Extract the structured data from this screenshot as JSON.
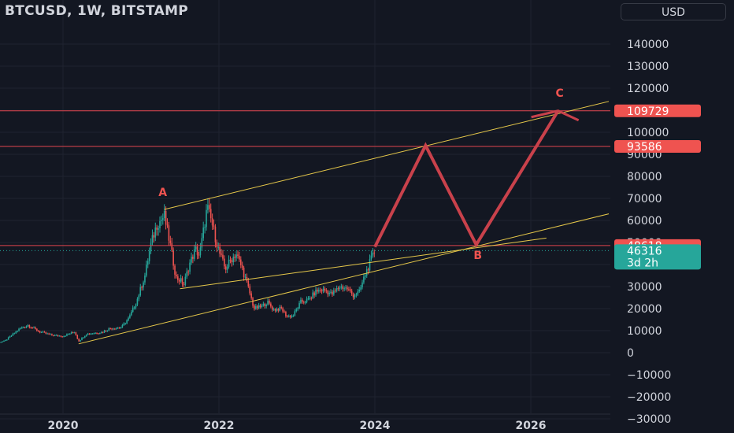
{
  "header": {
    "title": "BTCUSD, 1W, BITSTAMP",
    "currency_label": "USD"
  },
  "colors": {
    "background": "#131722",
    "axis_text": "#d1d4dc",
    "grid": "#1f2330",
    "up": "#26a69a",
    "down": "#ef5350",
    "channel_line": "#e6c84a",
    "projection": "#c9414b",
    "level_line": "#e0444d",
    "price_badge": "#26a69a"
  },
  "chart_data": {
    "type": "candlestick",
    "symbol": "BTCUSD",
    "interval": "1W",
    "exchange": "BITSTAMP",
    "x_tick_labels": [
      "2020",
      "2022",
      "2024",
      "2026"
    ],
    "y_tick_values": [
      140000,
      130000,
      120000,
      110000,
      100000,
      90000,
      80000,
      70000,
      60000,
      50000,
      40000,
      30000,
      20000,
      10000,
      0,
      -10000,
      -20000,
      -30000
    ],
    "y_range": [
      -34000,
      146000
    ],
    "price_path": [
      {
        "x": 2019.05,
        "y": 4000
      },
      {
        "x": 2019.25,
        "y": 5200
      },
      {
        "x": 2019.45,
        "y": 11000
      },
      {
        "x": 2019.55,
        "y": 12500
      },
      {
        "x": 2019.7,
        "y": 9500
      },
      {
        "x": 2019.85,
        "y": 8000
      },
      {
        "x": 2020.0,
        "y": 7500
      },
      {
        "x": 2020.15,
        "y": 9500
      },
      {
        "x": 2020.2,
        "y": 5200
      },
      {
        "x": 2020.3,
        "y": 8500
      },
      {
        "x": 2020.5,
        "y": 9300
      },
      {
        "x": 2020.6,
        "y": 11000
      },
      {
        "x": 2020.75,
        "y": 11500
      },
      {
        "x": 2020.85,
        "y": 16000
      },
      {
        "x": 2020.95,
        "y": 24000
      },
      {
        "x": 2021.05,
        "y": 35000
      },
      {
        "x": 2021.12,
        "y": 48000
      },
      {
        "x": 2021.2,
        "y": 58000
      },
      {
        "x": 2021.3,
        "y": 62000
      },
      {
        "x": 2021.38,
        "y": 48000
      },
      {
        "x": 2021.45,
        "y": 34000
      },
      {
        "x": 2021.5,
        "y": 33000
      },
      {
        "x": 2021.55,
        "y": 31000
      },
      {
        "x": 2021.62,
        "y": 40000
      },
      {
        "x": 2021.7,
        "y": 47000
      },
      {
        "x": 2021.75,
        "y": 44000
      },
      {
        "x": 2021.8,
        "y": 55000
      },
      {
        "x": 2021.85,
        "y": 66000
      },
      {
        "x": 2021.9,
        "y": 60000
      },
      {
        "x": 2022.0,
        "y": 46000
      },
      {
        "x": 2022.08,
        "y": 38000
      },
      {
        "x": 2022.15,
        "y": 42000
      },
      {
        "x": 2022.22,
        "y": 45000
      },
      {
        "x": 2022.3,
        "y": 38000
      },
      {
        "x": 2022.38,
        "y": 29000
      },
      {
        "x": 2022.45,
        "y": 20000
      },
      {
        "x": 2022.55,
        "y": 21000
      },
      {
        "x": 2022.62,
        "y": 23000
      },
      {
        "x": 2022.7,
        "y": 19500
      },
      {
        "x": 2022.8,
        "y": 20000
      },
      {
        "x": 2022.87,
        "y": 16500
      },
      {
        "x": 2022.95,
        "y": 16800
      },
      {
        "x": 2023.05,
        "y": 23000
      },
      {
        "x": 2023.15,
        "y": 24000
      },
      {
        "x": 2023.25,
        "y": 28000
      },
      {
        "x": 2023.35,
        "y": 28500
      },
      {
        "x": 2023.45,
        "y": 26500
      },
      {
        "x": 2023.55,
        "y": 30000
      },
      {
        "x": 2023.65,
        "y": 29000
      },
      {
        "x": 2023.72,
        "y": 26000
      },
      {
        "x": 2023.8,
        "y": 27500
      },
      {
        "x": 2023.87,
        "y": 35000
      },
      {
        "x": 2023.95,
        "y": 42000
      },
      {
        "x": 2024.0,
        "y": 46316
      }
    ],
    "channels": [
      {
        "points": [
          {
            "x": 2020.2,
            "y": 4000
          },
          {
            "x": 2027.0,
            "y": 63000
          }
        ]
      },
      {
        "points": [
          {
            "x": 2021.3,
            "y": 65000
          },
          {
            "x": 2027.0,
            "y": 114000
          }
        ]
      },
      {
        "points": [
          {
            "x": 2021.5,
            "y": 29000
          },
          {
            "x": 2026.2,
            "y": 52000
          }
        ]
      }
    ],
    "horizontal_levels": [
      {
        "value": 109729,
        "label": "109729"
      },
      {
        "value": 93586,
        "label": "93586"
      },
      {
        "value": 48618,
        "label": "48618"
      }
    ],
    "projection_path": [
      {
        "x": 2024.0,
        "y": 48000
      },
      {
        "x": 2024.65,
        "y": 94000
      },
      {
        "x": 2025.3,
        "y": 49000
      },
      {
        "x": 2026.35,
        "y": 109729
      }
    ],
    "wave_labels": [
      {
        "text": "A",
        "x": 2021.28,
        "y": 71000
      },
      {
        "text": "B",
        "x": 2025.32,
        "y": 42500
      },
      {
        "text": "C",
        "x": 2026.37,
        "y": 116000
      }
    ],
    "last_price": {
      "value": 46316,
      "label": "46316",
      "countdown": "3d 2h"
    }
  }
}
